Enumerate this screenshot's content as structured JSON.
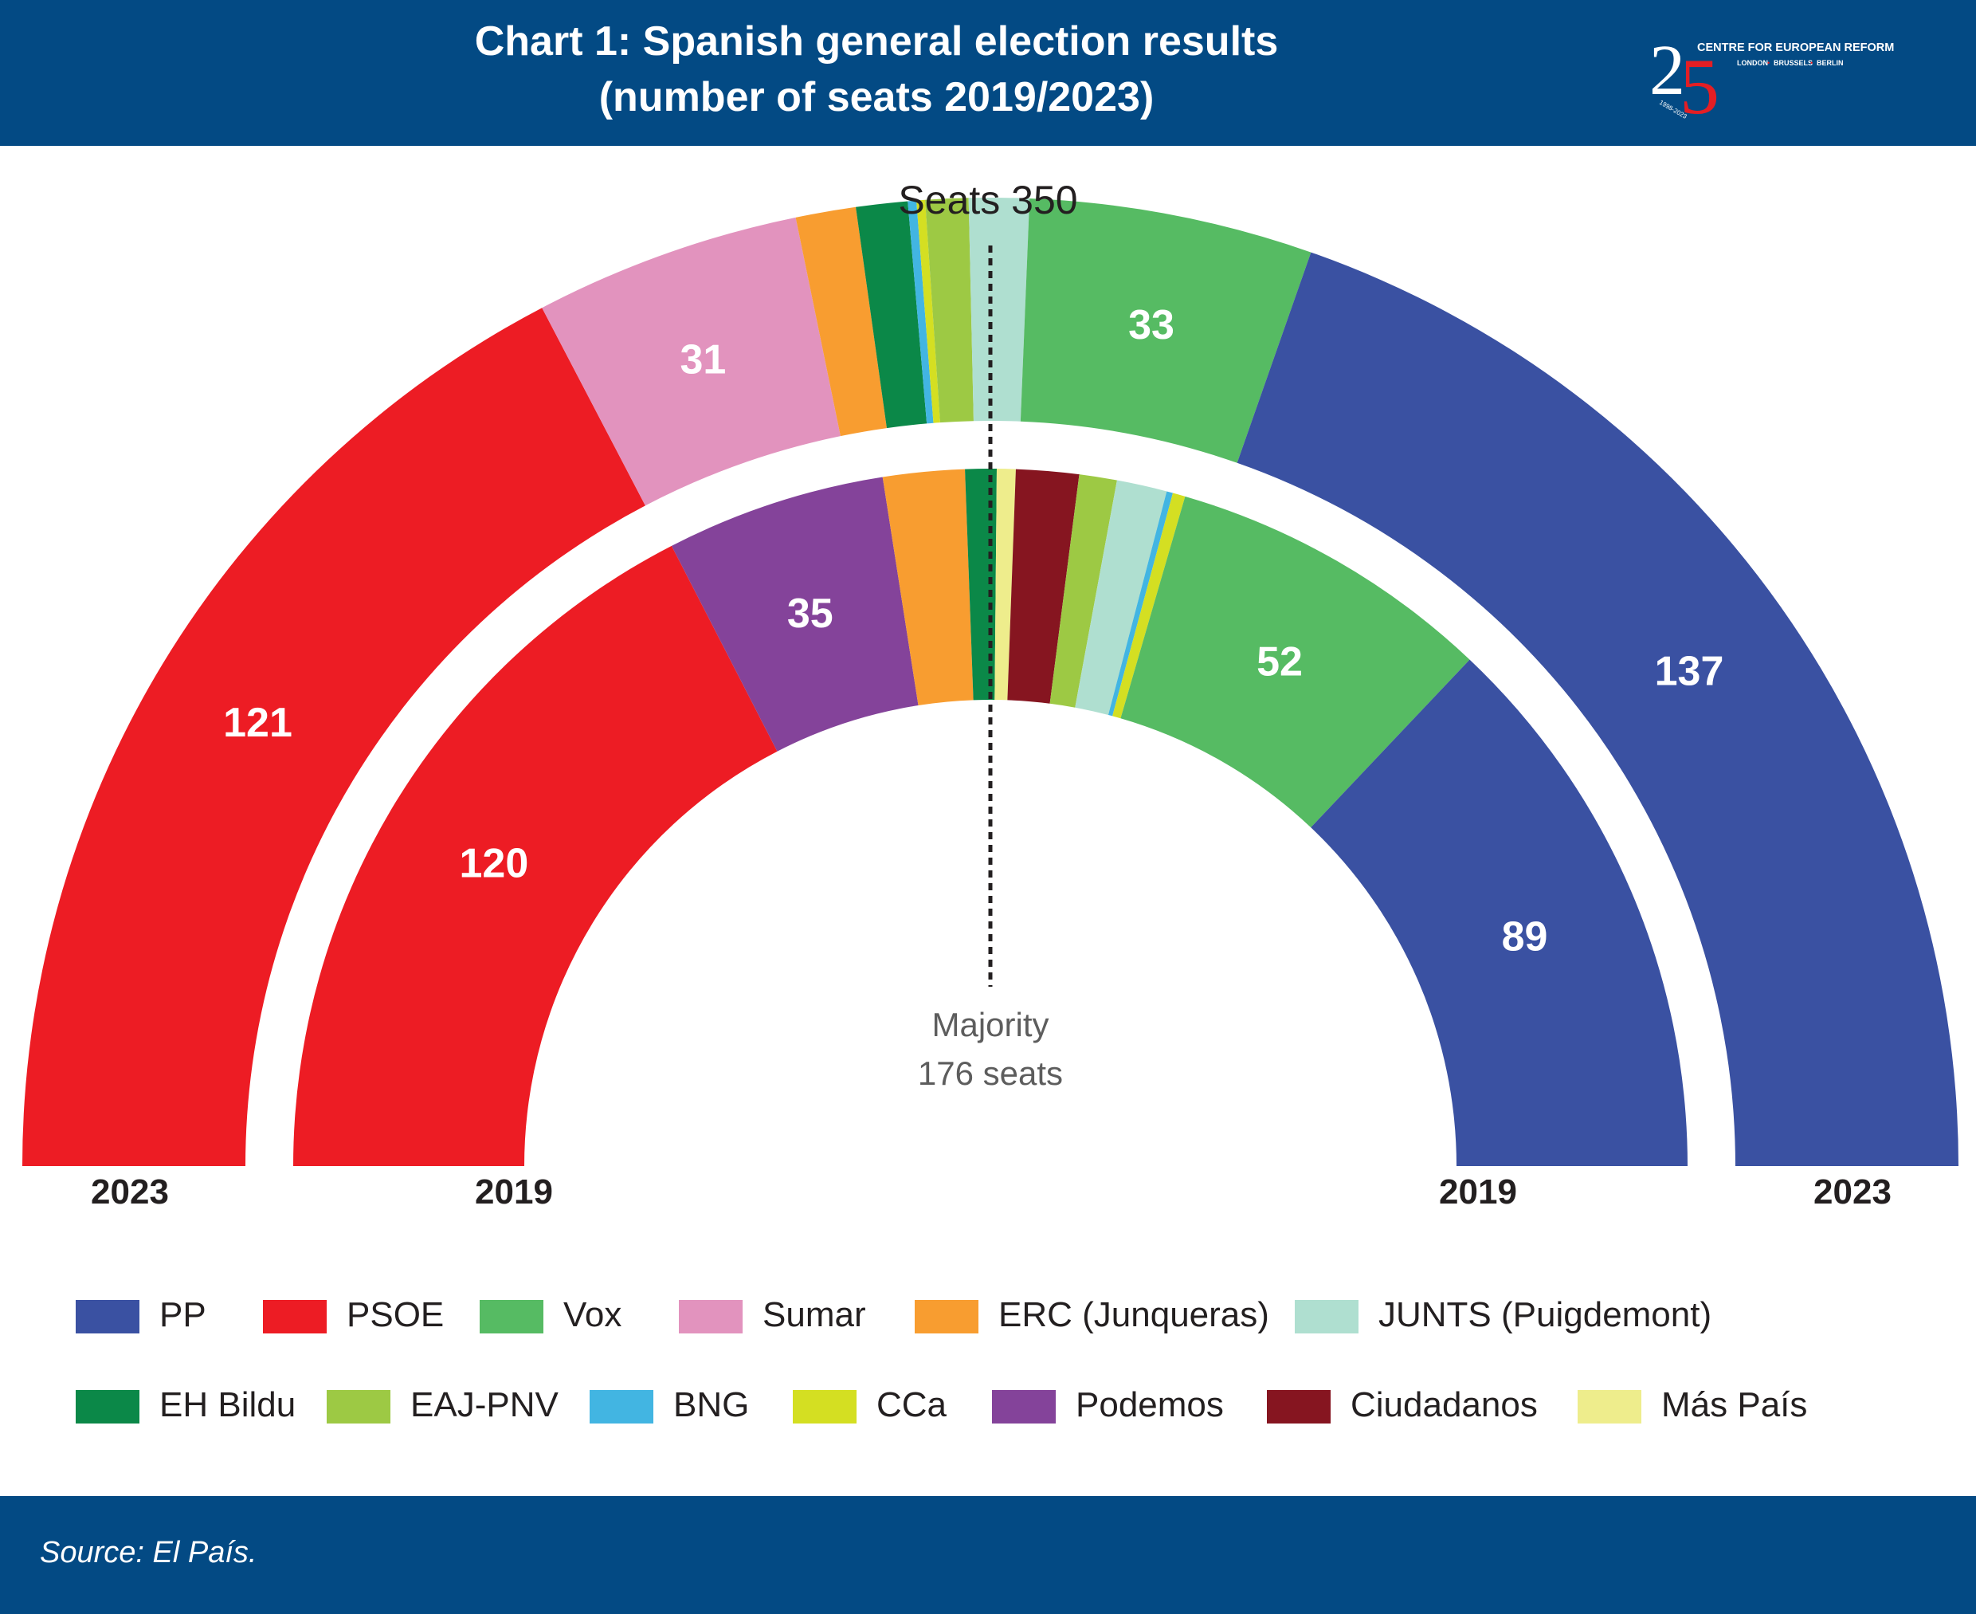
{
  "title": {
    "line1": "Chart 1: Spanish general election results",
    "line2": "(number of seats 2019/2023)"
  },
  "logo": {
    "numeral_2": "2",
    "numeral_5": "5",
    "name": "CENTRE FOR EUROPEAN REFORM",
    "cities": [
      "LONDON",
      "BRUSSELS",
      "BERLIN"
    ],
    "years": "1998-2023"
  },
  "source": "Source: El País.",
  "chart_data": {
    "type": "parliament-semicircle",
    "total_label": "Seats 350",
    "majority_label": [
      "Majority",
      "176 seats"
    ],
    "total_seats": 350,
    "majority": 176,
    "rings": [
      {
        "year": "2023",
        "ring": "outer",
        "seats": [
          {
            "party": "PSOE",
            "seats": 121,
            "label": "121"
          },
          {
            "party": "Sumar",
            "seats": 31,
            "label": "31"
          },
          {
            "party": "ERC (Junqueras)",
            "seats": 7,
            "label": ""
          },
          {
            "party": "EH Bildu",
            "seats": 6,
            "label": ""
          },
          {
            "party": "BNG",
            "seats": 1,
            "label": ""
          },
          {
            "party": "CCa",
            "seats": 1,
            "label": ""
          },
          {
            "party": "EAJ-PNV",
            "seats": 5,
            "label": ""
          },
          {
            "party": "JUNTS (Puigdemont)",
            "seats": 7,
            "label": ""
          },
          {
            "party": "Vox",
            "seats": 33,
            "label": "33"
          },
          {
            "party": "PP",
            "seats": 137,
            "label": "137"
          }
        ]
      },
      {
        "year": "2019",
        "ring": "inner",
        "seats": [
          {
            "party": "PSOE",
            "seats": 120,
            "label": "120"
          },
          {
            "party": "Podemos",
            "seats": 35,
            "label": "35"
          },
          {
            "party": "ERC (Junqueras)",
            "seats": 13,
            "label": ""
          },
          {
            "party": "EH Bildu",
            "seats": 5,
            "label": ""
          },
          {
            "party": "Más País",
            "seats": 3,
            "label": ""
          },
          {
            "party": "Ciudadanos",
            "seats": 10,
            "label": ""
          },
          {
            "party": "EAJ-PNV",
            "seats": 6,
            "label": ""
          },
          {
            "party": "JUNTS (Puigdemont)",
            "seats": 8,
            "label": ""
          },
          {
            "party": "BNG",
            "seats": 1,
            "label": ""
          },
          {
            "party": "CCa",
            "seats": 2,
            "label": ""
          },
          {
            "party": "Vox",
            "seats": 52,
            "label": "52"
          },
          {
            "party": "PP",
            "seats": 89,
            "label": "89"
          }
        ]
      }
    ],
    "year_labels": [
      "2023",
      "2019",
      "2019",
      "2023"
    ],
    "legend": [
      {
        "name": "PP",
        "color": "#3a51a2"
      },
      {
        "name": "PSOE",
        "color": "#ed1c24"
      },
      {
        "name": "Vox",
        "color": "#56bb63"
      },
      {
        "name": "Sumar",
        "color": "#e293be"
      },
      {
        "name": "ERC (Junqueras)",
        "color": "#f89d30"
      },
      {
        "name": "JUNTS (Puigdemont)",
        "color": "#afdfd0"
      },
      {
        "name": "EH Bildu",
        "color": "#0b8848"
      },
      {
        "name": "EAJ-PNV",
        "color": "#9dc944"
      },
      {
        "name": "BNG",
        "color": "#42b5e2"
      },
      {
        "name": "CCa",
        "color": "#d4df22"
      },
      {
        "name": "Podemos",
        "color": "#84439a"
      },
      {
        "name": "Ciudadanos",
        "color": "#861520"
      },
      {
        "name": "Más País",
        "color": "#eeed8c"
      }
    ]
  }
}
